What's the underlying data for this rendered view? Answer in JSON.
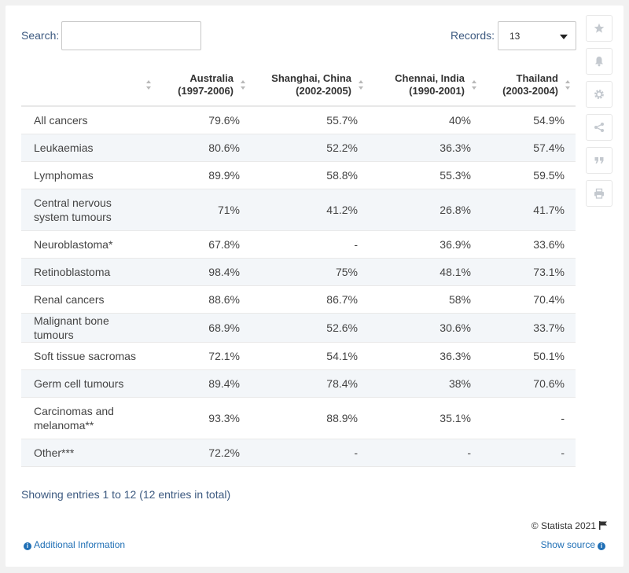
{
  "search": {
    "label": "Search:",
    "value": "",
    "placeholder": ""
  },
  "records": {
    "label": "Records:",
    "value": "13"
  },
  "chart_data": {
    "type": "table",
    "columns": [
      {
        "name": "",
        "line1": "",
        "line2": ""
      },
      {
        "name": "Australia (1997-2006)",
        "line1": "Australia",
        "line2": "(1997-2006)"
      },
      {
        "name": "Shanghai, China (2002-2005)",
        "line1": "Shanghai, China",
        "line2": "(2002-2005)"
      },
      {
        "name": "Chennai, India (1990-2001)",
        "line1": "Chennai, India",
        "line2": "(1990-2001)"
      },
      {
        "name": "Thailand (2003-2004)",
        "line1": "Thailand",
        "line2": "(2003-2004)"
      }
    ],
    "rows": [
      [
        "All cancers",
        "79.6%",
        "55.7%",
        "40%",
        "54.9%"
      ],
      [
        "Leukaemias",
        "80.6%",
        "52.2%",
        "36.3%",
        "57.4%"
      ],
      [
        "Lymphomas",
        "89.9%",
        "58.8%",
        "55.3%",
        "59.5%"
      ],
      [
        "Central nervous system tumours",
        "71%",
        "41.2%",
        "26.8%",
        "41.7%"
      ],
      [
        "Neuroblastoma*",
        "67.8%",
        "-",
        "36.9%",
        "33.6%"
      ],
      [
        "Retinoblastoma",
        "98.4%",
        "75%",
        "48.1%",
        "73.1%"
      ],
      [
        "Renal cancers",
        "88.6%",
        "86.7%",
        "58%",
        "70.4%"
      ],
      [
        "Malignant bone tumours",
        "68.9%",
        "52.6%",
        "30.6%",
        "33.7%"
      ],
      [
        "Soft tissue sacromas",
        "72.1%",
        "54.1%",
        "36.3%",
        "50.1%"
      ],
      [
        "Germ cell tumours",
        "89.4%",
        "78.4%",
        "38%",
        "70.6%"
      ],
      [
        "Carcinomas and melanoma**",
        "93.3%",
        "88.9%",
        "35.1%",
        "-"
      ],
      [
        "Other***",
        "72.2%",
        "-",
        "-",
        "-"
      ]
    ]
  },
  "footer": {
    "entries": "Showing entries 1 to 12 (12 entries in total)",
    "copyright": "© Statista 2021",
    "additional_info": "Additional Information",
    "show_source": "Show source"
  },
  "sidebar": [
    {
      "icon": "star-icon"
    },
    {
      "icon": "bell-icon"
    },
    {
      "icon": "gear-icon"
    },
    {
      "icon": "share-icon"
    },
    {
      "icon": "quote-icon"
    },
    {
      "icon": "print-icon"
    }
  ],
  "colors": {
    "link": "#1f6fb5",
    "stripe": "#f3f6f9",
    "label": "#3d5a80"
  }
}
